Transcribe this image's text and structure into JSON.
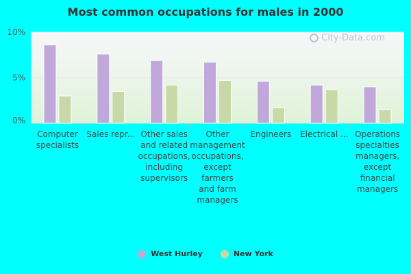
{
  "chart_data": {
    "type": "bar",
    "title": "Most common occupations for males in 2000",
    "categories": [
      "Computer\nspecialists",
      "Sales repr...",
      "Other sales\nand related\noccupations,\nincluding\nsupervisors",
      "Other\nmanagement\noccupations,\nexcept\nfarmers\nand farm\nmanagers",
      "Engineers",
      "Electrical ...",
      "Operations\nspecialties\nmanagers,\nexcept\nfinancial\nmanagers"
    ],
    "series": [
      {
        "name": "West Hurley",
        "values": [
          8.6,
          7.6,
          6.9,
          6.7,
          4.6,
          4.2,
          4.0
        ]
      },
      {
        "name": "New York",
        "values": [
          3.0,
          3.5,
          4.2,
          4.7,
          1.7,
          3.7,
          1.5
        ]
      }
    ],
    "yticks": [
      0,
      5,
      10
    ],
    "ytick_labels": [
      "0%",
      "5%",
      "10%"
    ],
    "ylim": [
      0,
      10
    ],
    "xlabel": "",
    "ylabel": "",
    "legend_position": "bottom-center",
    "grid": true
  },
  "colors": {
    "West Hurley": "#c0a8da",
    "New York": "#c8d8a6",
    "plot_bg_top": "#f7f7fa",
    "plot_bg_bottom": "#dff3d8"
  },
  "watermark": {
    "text": "City-Data.com",
    "icon": "city-data-logo-icon"
  }
}
